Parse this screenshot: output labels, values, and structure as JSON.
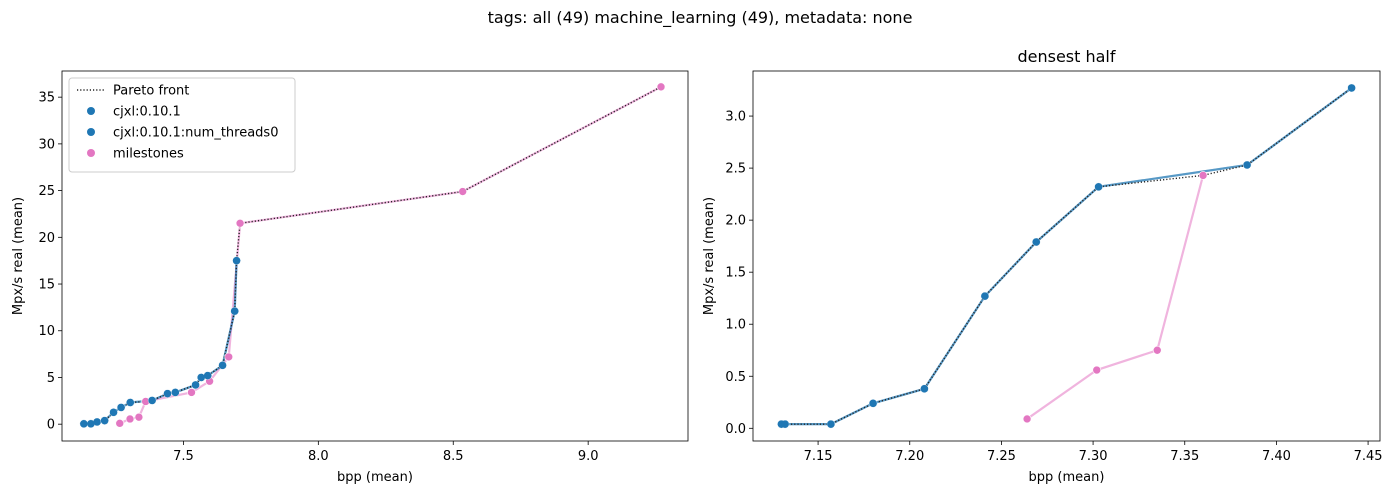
{
  "figure": {
    "suptitle": "tags: all (49) machine_learning (49), metadata: none"
  },
  "colors": {
    "series_blue": "#1f77b4",
    "milestones": "#e377c2",
    "pareto": "#222222"
  },
  "chart_data": [
    {
      "type": "scatter",
      "title": "",
      "xlabel": "bpp (mean)",
      "ylabel": "Mpx/s real (mean)",
      "xlim": [
        7.05,
        9.37
      ],
      "ylim": [
        -1.8,
        37.8
      ],
      "xticks": [
        7.5,
        8.0,
        8.5,
        9.0
      ],
      "xtick_labels": [
        "7.5",
        "8.0",
        "8.5",
        "9.0"
      ],
      "yticks": [
        0,
        5,
        10,
        15,
        20,
        25,
        30,
        35
      ],
      "ytick_labels": [
        "0",
        "5",
        "10",
        "15",
        "20",
        "25",
        "30",
        "35"
      ],
      "grid": false,
      "legend_position": "upper left",
      "legend": [
        "Pareto front",
        "cjxl:0.10.1",
        "cjxl:0.10.1:num_threads0",
        "milestones"
      ],
      "series": [
        {
          "name": "cjxl:0.10.1",
          "x": [
            7.131,
            7.157,
            7.18,
            7.208,
            7.241,
            7.269,
            7.303,
            7.384,
            7.441,
            7.47,
            7.545,
            7.566,
            7.59,
            7.645,
            7.69,
            7.697
          ],
          "y": [
            0.04,
            0.04,
            0.24,
            0.38,
            1.27,
            1.79,
            2.32,
            2.54,
            3.27,
            3.4,
            4.2,
            5.0,
            5.2,
            6.3,
            12.1,
            17.5
          ]
        },
        {
          "name": "cjxl:0.10.1:num_threads0",
          "x": [
            7.131,
            7.157,
            7.18,
            7.208,
            7.241,
            7.269,
            7.303,
            7.384,
            7.441,
            7.47,
            7.545,
            7.566,
            7.59,
            7.645,
            7.69,
            7.697
          ],
          "y": [
            0.04,
            0.04,
            0.24,
            0.38,
            1.27,
            1.79,
            2.32,
            2.54,
            3.27,
            3.4,
            4.2,
            5.0,
            5.2,
            6.3,
            12.1,
            17.5
          ]
        },
        {
          "name": "milestones",
          "x": [
            7.264,
            7.302,
            7.335,
            7.36,
            7.53,
            7.597,
            7.668,
            7.71,
            8.535,
            9.27
          ],
          "y": [
            0.09,
            0.56,
            0.75,
            2.43,
            3.4,
            4.6,
            7.2,
            21.5,
            24.9,
            36.1
          ]
        }
      ],
      "pareto_front": {
        "x": [
          7.131,
          7.157,
          7.18,
          7.208,
          7.241,
          7.269,
          7.303,
          7.36,
          7.384,
          7.441,
          7.47,
          7.545,
          7.566,
          7.59,
          7.645,
          7.69,
          7.697,
          7.71,
          8.535,
          9.27
        ],
        "y": [
          0.04,
          0.04,
          0.24,
          0.38,
          1.27,
          1.79,
          2.32,
          2.43,
          2.54,
          3.27,
          3.4,
          4.2,
          5.0,
          5.2,
          6.3,
          12.1,
          17.5,
          21.5,
          24.9,
          36.1
        ]
      }
    },
    {
      "type": "scatter",
      "title": "densest half",
      "xlabel": "bpp (mean)",
      "ylabel": "Mpx/s real (mean)",
      "xlim": [
        7.1145,
        7.4565
      ],
      "ylim": [
        -0.122,
        3.433
      ],
      "xticks": [
        7.15,
        7.2,
        7.25,
        7.3,
        7.35,
        7.4,
        7.45
      ],
      "xtick_labels": [
        "7.15",
        "7.20",
        "7.25",
        "7.30",
        "7.35",
        "7.40",
        "7.45"
      ],
      "yticks": [
        0.0,
        0.5,
        1.0,
        1.5,
        2.0,
        2.5,
        3.0
      ],
      "ytick_labels": [
        "0.0",
        "0.5",
        "1.0",
        "1.5",
        "2.0",
        "2.5",
        "3.0"
      ],
      "grid": false,
      "series": [
        {
          "name": "cjxl:0.10.1",
          "x": [
            7.13,
            7.132,
            7.157,
            7.18,
            7.208,
            7.241,
            7.269,
            7.303,
            7.384,
            7.441
          ],
          "y": [
            0.04,
            0.04,
            0.04,
            0.24,
            0.38,
            1.27,
            1.79,
            2.32,
            2.53,
            3.27
          ]
        },
        {
          "name": "cjxl:0.10.1:num_threads0",
          "x": [
            7.13,
            7.132,
            7.157,
            7.18,
            7.208,
            7.241,
            7.269,
            7.303,
            7.384,
            7.441
          ],
          "y": [
            0.04,
            0.04,
            0.04,
            0.24,
            0.38,
            1.27,
            1.79,
            2.32,
            2.53,
            3.27
          ]
        },
        {
          "name": "milestones",
          "x": [
            7.264,
            7.302,
            7.335,
            7.36
          ],
          "y": [
            0.09,
            0.56,
            0.75,
            2.43
          ]
        }
      ],
      "pareto_front": {
        "x": [
          7.13,
          7.132,
          7.157,
          7.18,
          7.208,
          7.241,
          7.269,
          7.303,
          7.36,
          7.384,
          7.441
        ],
        "y": [
          0.04,
          0.04,
          0.04,
          0.24,
          0.38,
          1.27,
          1.79,
          2.32,
          2.43,
          2.53,
          3.27
        ]
      }
    }
  ]
}
